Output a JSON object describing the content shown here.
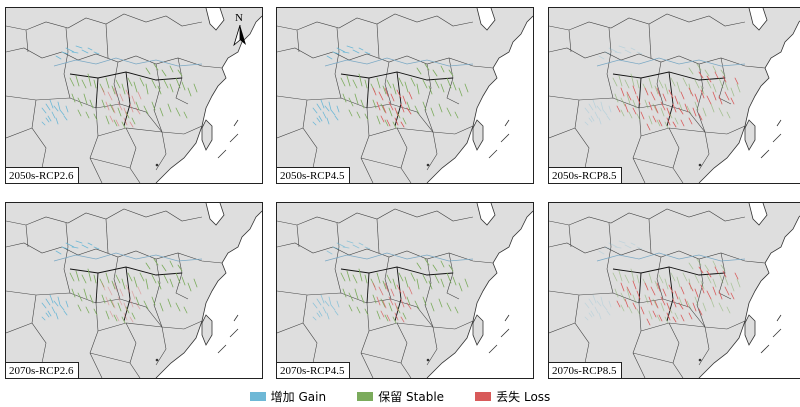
{
  "panels": [
    {
      "label": "2050s-RCP2.6",
      "loss_level": 0.2
    },
    {
      "label": "2050s-RCP4.5",
      "loss_level": 0.45
    },
    {
      "label": "2050s-RCP8.5",
      "loss_level": 0.85
    },
    {
      "label": "2070s-RCP2.6",
      "loss_level": 0.15
    },
    {
      "label": "2070s-RCP4.5",
      "loss_level": 0.3
    },
    {
      "label": "2070s-RCP8.5",
      "loss_level": 0.9
    }
  ],
  "north_arrow": {
    "label": "N",
    "icon": "north-arrow-icon"
  },
  "legend": [
    {
      "label": "增加 Gain",
      "color": "#6eb8d6"
    },
    {
      "label": "保留 Stable",
      "color": "#7bab5c"
    },
    {
      "label": "丢失 Loss",
      "color": "#d85a5a"
    }
  ],
  "colors": {
    "land": "#dedede",
    "sea": "#ffffff",
    "border": "#333333"
  }
}
